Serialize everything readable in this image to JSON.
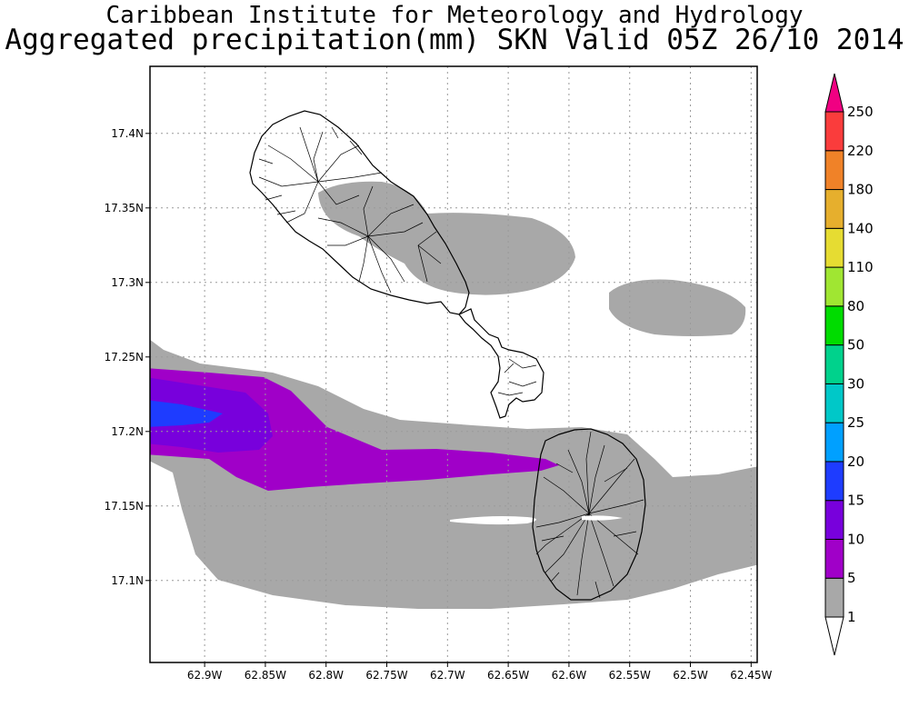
{
  "header": {
    "title": "Caribbean Institute for Meteorology and Hydrology",
    "subtitle": "Aggregated precipitation(mm) SKN Valid 05Z 26/10 2014"
  },
  "map": {
    "lon_range": [
      -62.945,
      -62.445
    ],
    "lat_range": [
      17.045,
      17.445
    ],
    "x_ticks": [
      {
        "value": -62.9,
        "label": "62.9W"
      },
      {
        "value": -62.85,
        "label": "62.85W"
      },
      {
        "value": -62.8,
        "label": "62.8W"
      },
      {
        "value": -62.75,
        "label": "62.75W"
      },
      {
        "value": -62.7,
        "label": "62.7W"
      },
      {
        "value": -62.65,
        "label": "62.65W"
      },
      {
        "value": -62.6,
        "label": "62.6W"
      },
      {
        "value": -62.55,
        "label": "62.55W"
      },
      {
        "value": -62.5,
        "label": "62.5W"
      },
      {
        "value": -62.45,
        "label": "62.45W"
      }
    ],
    "y_ticks": [
      {
        "value": 17.4,
        "label": "17.4N"
      },
      {
        "value": 17.35,
        "label": "17.35N"
      },
      {
        "value": 17.3,
        "label": "17.3N"
      },
      {
        "value": 17.25,
        "label": "17.25N"
      },
      {
        "value": 17.2,
        "label": "17.2N"
      },
      {
        "value": 17.15,
        "label": "17.15N"
      },
      {
        "value": 17.1,
        "label": "17.1N"
      }
    ],
    "grid": true
  },
  "colorbar": {
    "levels": [
      {
        "label": "1",
        "color": "#ffffff"
      },
      {
        "label": "5",
        "color": "#a8a8a8"
      },
      {
        "label": "10",
        "color": "#a000c8"
      },
      {
        "label": "15",
        "color": "#7800dc"
      },
      {
        "label": "20",
        "color": "#1e3cff"
      },
      {
        "label": "25",
        "color": "#00a0ff"
      },
      {
        "label": "30",
        "color": "#00c8c8"
      },
      {
        "label": "50",
        "color": "#00d28c"
      },
      {
        "label": "80",
        "color": "#00dc00"
      },
      {
        "label": "110",
        "color": "#a0e632"
      },
      {
        "label": "140",
        "color": "#e6dc32"
      },
      {
        "label": "180",
        "color": "#e6af2d"
      },
      {
        "label": "220",
        "color": "#f08228"
      },
      {
        "label": "250",
        "color": "#fa3c3c"
      }
    ],
    "top_arrow_color": "#f00082",
    "bottom_arrow_color": "#ffffff"
  },
  "colors": {
    "grey_band": "#a8a8a8",
    "purple_band": "#a000c8",
    "violet_band": "#7800dc",
    "blue_band": "#1e3cff"
  }
}
